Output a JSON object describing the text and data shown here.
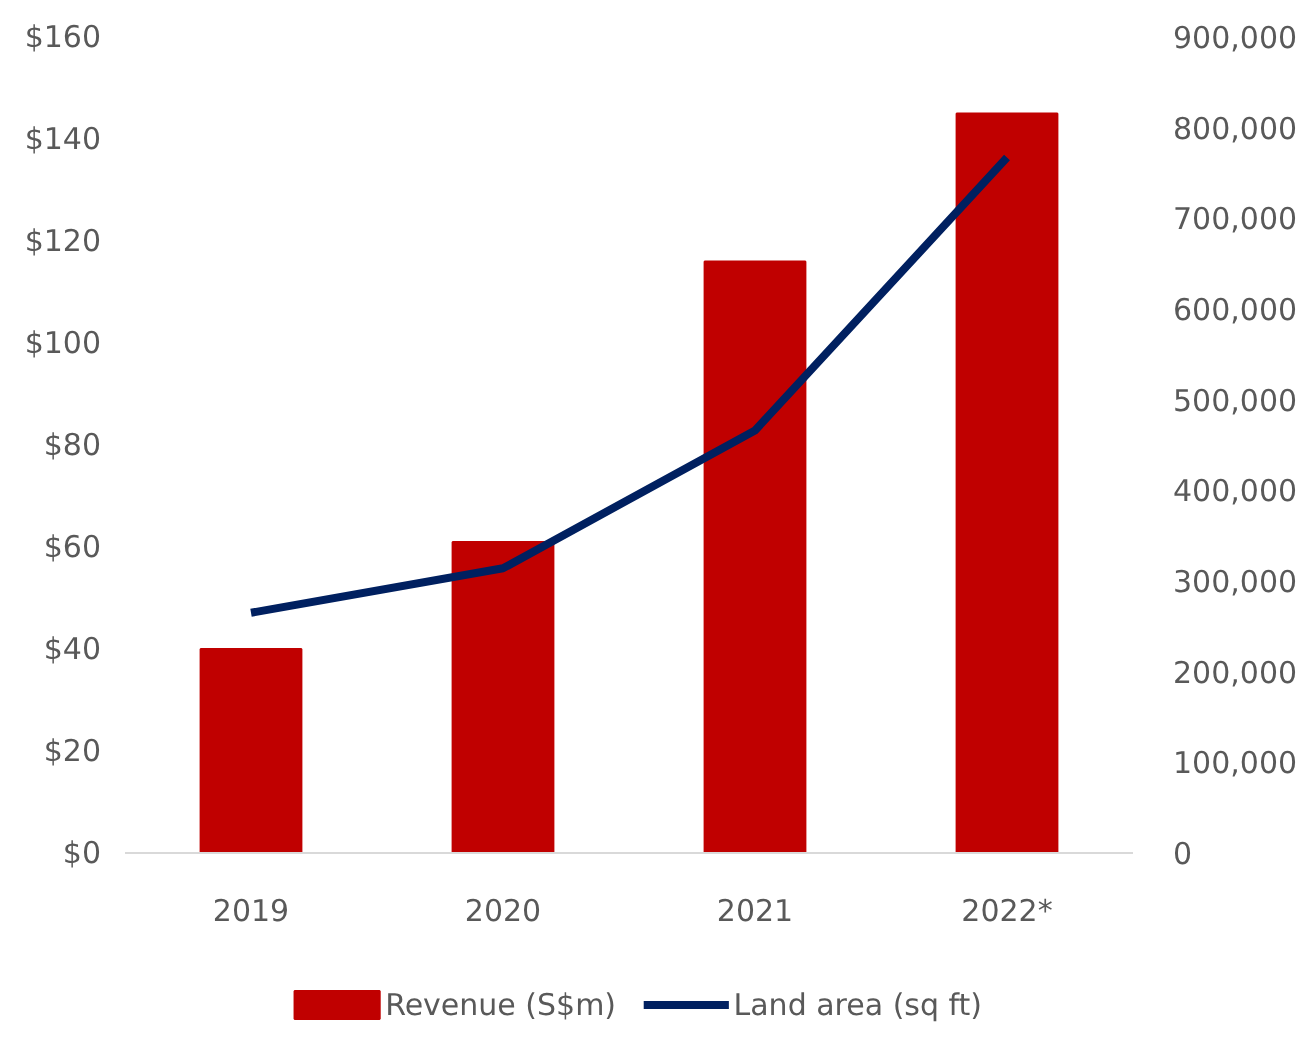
{
  "chart_data": {
    "type": "bar",
    "categories": [
      "2019",
      "2020",
      "2021",
      "2022*"
    ],
    "series": [
      {
        "name": "Revenue (S$m)",
        "color": "#c00000",
        "values": [
          40,
          61,
          116,
          145
        ]
      },
      {
        "name": "Land area (sq ft)",
        "type": "line",
        "axis": "y2",
        "color": "#002060",
        "values": [
          265000,
          314000,
          466000,
          767000
        ]
      }
    ],
    "ylim": [
      0,
      160
    ],
    "yticks": [
      {
        "value": 0,
        "label": "$0"
      },
      {
        "value": 20,
        "label": "$20"
      },
      {
        "value": 40,
        "label": "$40"
      },
      {
        "value": 60,
        "label": "$60"
      },
      {
        "value": 80,
        "label": "$80"
      },
      {
        "value": 100,
        "label": "$100"
      },
      {
        "value": 120,
        "label": "$120"
      },
      {
        "value": 140,
        "label": "$140"
      },
      {
        "value": 160,
        "label": "$160"
      }
    ],
    "y2lim": [
      0,
      900000
    ],
    "y2ticks": [
      {
        "value": 0,
        "label": "0"
      },
      {
        "value": 100000,
        "label": "100,000"
      },
      {
        "value": 200000,
        "label": "200,000"
      },
      {
        "value": 300000,
        "label": "300,000"
      },
      {
        "value": 400000,
        "label": "400,000"
      },
      {
        "value": 500000,
        "label": "500,000"
      },
      {
        "value": 600000,
        "label": "600,000"
      },
      {
        "value": 700000,
        "label": "700,000"
      },
      {
        "value": 800000,
        "label": "800,000"
      },
      {
        "value": 900000,
        "label": "900,000"
      }
    ],
    "grid": false,
    "legend": "bottom",
    "marker": "none",
    "line_style": "solid"
  }
}
